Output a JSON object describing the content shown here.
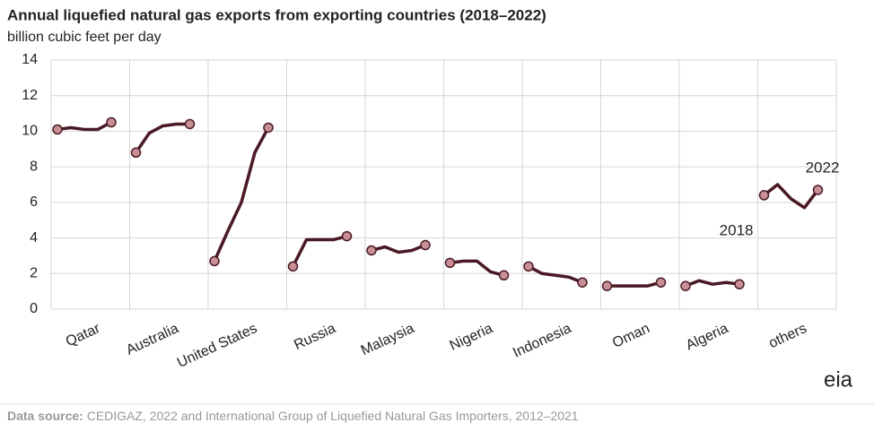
{
  "chart_data": {
    "type": "line",
    "title": "Annual liquefied natural gas exports from exporting countries (2018–2022)",
    "subtitle": "billion cubic feet per day",
    "ylim": [
      0,
      14
    ],
    "yticks": [
      0,
      2,
      4,
      6,
      8,
      10,
      12,
      14
    ],
    "grid": true,
    "line_color": "#4a1a24",
    "marker_color": "#c98f97",
    "annotation_color": "#7a3f4a",
    "series": [
      {
        "name": "Qatar",
        "values": [
          10.1,
          10.2,
          10.1,
          10.1,
          10.5
        ]
      },
      {
        "name": "Australia",
        "values": [
          8.8,
          9.9,
          10.3,
          10.4,
          10.4
        ]
      },
      {
        "name": "United States",
        "values": [
          2.7,
          4.4,
          6.0,
          8.8,
          10.2
        ]
      },
      {
        "name": "Russia",
        "values": [
          2.4,
          3.9,
          3.9,
          3.9,
          4.1
        ]
      },
      {
        "name": "Malaysia",
        "values": [
          3.3,
          3.5,
          3.2,
          3.3,
          3.6
        ]
      },
      {
        "name": "Nigeria",
        "values": [
          2.6,
          2.7,
          2.7,
          2.1,
          1.9
        ]
      },
      {
        "name": "Indonesia",
        "values": [
          2.4,
          2.0,
          1.9,
          1.8,
          1.5
        ]
      },
      {
        "name": "Oman",
        "values": [
          1.3,
          1.3,
          1.3,
          1.3,
          1.5
        ]
      },
      {
        "name": "Algeria",
        "values": [
          1.3,
          1.6,
          1.4,
          1.5,
          1.4
        ]
      },
      {
        "name": "others",
        "values": [
          6.4,
          7.0,
          6.2,
          5.7,
          6.7
        ]
      }
    ],
    "annotations": [
      "2018",
      "2022"
    ],
    "source_label": "Data source:",
    "source_text": "CEDIGAZ, 2022 and International Group of Liquefied Natural Gas Importers, 2012–2021",
    "logo": "eia"
  }
}
